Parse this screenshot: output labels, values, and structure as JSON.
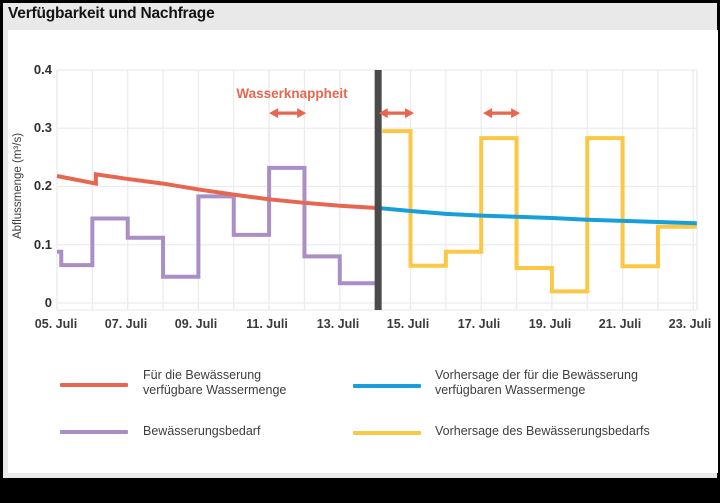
{
  "header": {
    "title": "Verfügbarkeit und Nachfrage"
  },
  "axes": {
    "y_label": "Abflussmenge (m³/s)",
    "y_ticks": [
      "0.4",
      "0.3",
      "0.2",
      "0.1",
      "0"
    ],
    "x_ticks": [
      "05. Juli",
      "07. Juli",
      "09. Juli",
      "11. Juli",
      "13. Juli",
      "15. Juli",
      "17. Juli",
      "19. Juli",
      "21. Juli",
      "23. Juli"
    ]
  },
  "annotation": {
    "label": "Wasserknappheit",
    "color": "#e7664f"
  },
  "legend": {
    "items": [
      {
        "line1": "Für die Bewässerung",
        "line2": "verfügbare Wassermenge",
        "color": "#e7664f"
      },
      {
        "line1": "Bewässerungsbedarf",
        "line2": "",
        "color": "#a98fc6"
      },
      {
        "line1": "Vorhersage der für die Bewässerung",
        "line2": "verfügbaren Wassermenge",
        "color": "#189fd9"
      },
      {
        "line1": "Vorhersage des Bewässerungsbedarfs",
        "line2": "",
        "color": "#fbc845"
      }
    ]
  },
  "chart_data": {
    "type": "line",
    "title": "Verfügbarkeit und Nachfrage",
    "ylabel": "Abflussmenge (m³/s)",
    "x_unit": "Tag im Juli",
    "xlim": [
      5,
      23.1
    ],
    "ylim": [
      0,
      0.4
    ],
    "grid": true,
    "x_tick_days": [
      5,
      7,
      9,
      11,
      13,
      15,
      17,
      19,
      21,
      23
    ],
    "divider_day": 14,
    "divider_color": "#4a4a4a",
    "grid_color": "#ececec",
    "scarcity_arrows": [
      {
        "from": 11.0,
        "to": 12.05,
        "y": 0.326
      },
      {
        "from": 14.1,
        "to": 15.1,
        "y": 0.326
      },
      {
        "from": 17.05,
        "to": 18.1,
        "y": 0.326
      }
    ],
    "series": [
      {
        "name": "Für die Bewässerung verfügbare Wassermenge",
        "type": "line",
        "color": "#e7664f",
        "points": [
          [
            5,
            0.218
          ],
          [
            6.1,
            0.205
          ],
          [
            6.1,
            0.221
          ],
          [
            7,
            0.213
          ],
          [
            8,
            0.205
          ],
          [
            9,
            0.195
          ],
          [
            10,
            0.186
          ],
          [
            11,
            0.178
          ],
          [
            12,
            0.172
          ],
          [
            13,
            0.167
          ],
          [
            14.05,
            0.163
          ]
        ]
      },
      {
        "name": "Bewässerungsbedarf",
        "type": "step",
        "color": "#a98fc6",
        "boundaries": [
          5,
          5.12,
          6,
          7,
          8,
          9,
          10,
          11,
          12,
          13,
          14.08
        ],
        "values": [
          0.088,
          0.065,
          0.145,
          0.112,
          0.045,
          0.183,
          0.117,
          0.232,
          0.08,
          0.034
        ]
      },
      {
        "name": "Vorhersage der für die Bewässerung verfügbaren Wassermenge",
        "type": "line",
        "color": "#189fd9",
        "points": [
          [
            14.1,
            0.163
          ],
          [
            15,
            0.158
          ],
          [
            16,
            0.153
          ],
          [
            17,
            0.15
          ],
          [
            18,
            0.148
          ],
          [
            19,
            0.146
          ],
          [
            20,
            0.143
          ],
          [
            21,
            0.141
          ],
          [
            22,
            0.139
          ],
          [
            23.1,
            0.137
          ]
        ]
      },
      {
        "name": "Vorhersage des Bewässerungsbedarfs",
        "type": "step",
        "color": "#fbc845",
        "boundaries": [
          14.2,
          15,
          16,
          17,
          18,
          19,
          20,
          21,
          22,
          23.1
        ],
        "values": [
          0.295,
          0.064,
          0.088,
          0.283,
          0.06,
          0.02,
          0.283,
          0.063,
          0.131
        ]
      }
    ]
  }
}
